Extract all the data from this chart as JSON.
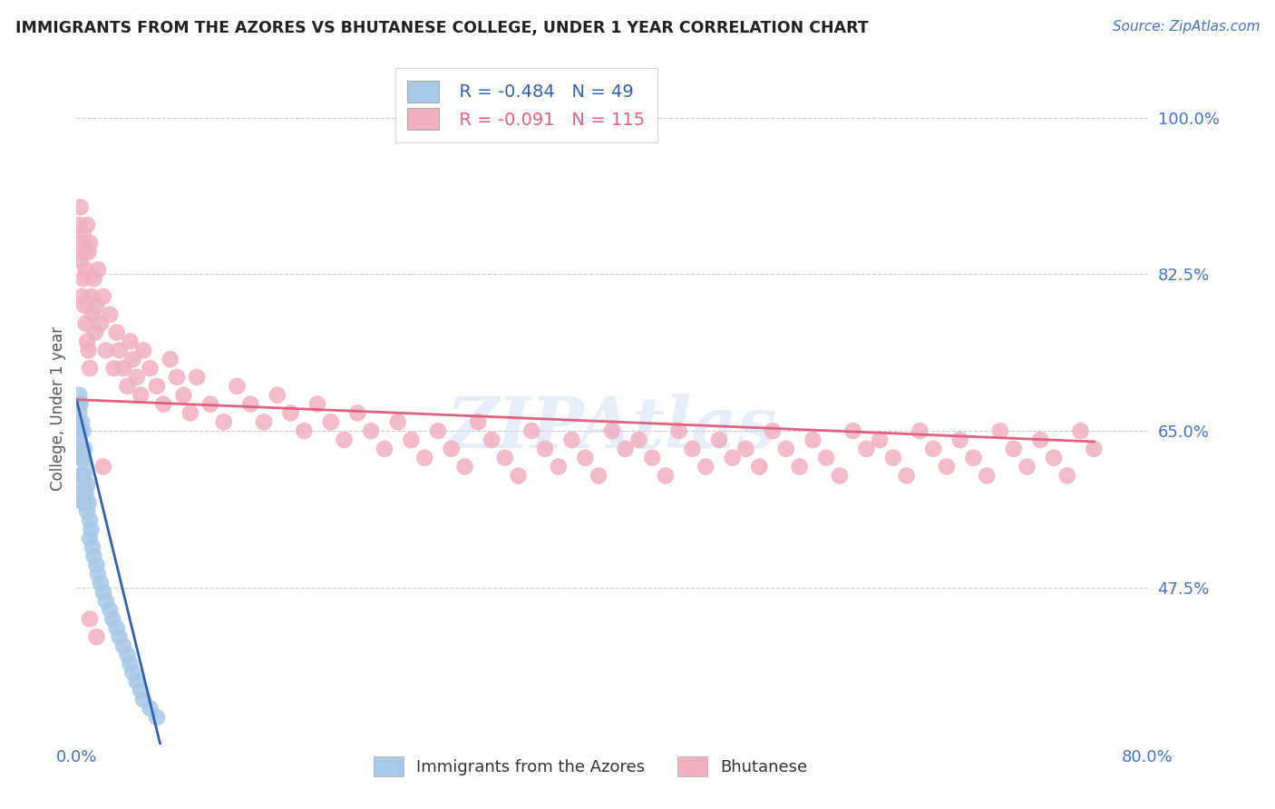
{
  "title": "IMMIGRANTS FROM THE AZORES VS BHUTANESE COLLEGE, UNDER 1 YEAR CORRELATION CHART",
  "source": "Source: ZipAtlas.com",
  "ylabel": "College, Under 1 year",
  "ytick_labels": [
    "100.0%",
    "82.5%",
    "65.0%",
    "47.5%"
  ],
  "ytick_values": [
    1.0,
    0.825,
    0.65,
    0.475
  ],
  "xmin": 0.0,
  "xmax": 0.8,
  "ymin": 0.3,
  "ymax": 1.05,
  "blue_R": -0.484,
  "blue_N": 49,
  "pink_R": -0.091,
  "pink_N": 115,
  "blue_color": "#a8c8e8",
  "pink_color": "#f0b0c0",
  "blue_line_color": "#3060b0",
  "pink_line_color": "#e06080",
  "watermark": "ZIPAtlas",
  "legend_label_blue": "Immigrants from the Azores",
  "legend_label_pink": "Bhutanese",
  "title_color": "#222222",
  "axis_label_color": "#4472c4",
  "background_color": "#ffffff",
  "blue_scatter_x": [
    0.001,
    0.001,
    0.002,
    0.002,
    0.002,
    0.002,
    0.003,
    0.003,
    0.003,
    0.003,
    0.004,
    0.004,
    0.004,
    0.004,
    0.005,
    0.005,
    0.005,
    0.005,
    0.006,
    0.006,
    0.006,
    0.007,
    0.007,
    0.008,
    0.008,
    0.009,
    0.01,
    0.01,
    0.011,
    0.012,
    0.013,
    0.015,
    0.016,
    0.018,
    0.02,
    0.022,
    0.025,
    0.027,
    0.03,
    0.032,
    0.035,
    0.038,
    0.04,
    0.042,
    0.045,
    0.048,
    0.05,
    0.055,
    0.06
  ],
  "blue_scatter_y": [
    0.68,
    0.66,
    0.69,
    0.64,
    0.67,
    0.63,
    0.68,
    0.65,
    0.62,
    0.6,
    0.66,
    0.63,
    0.6,
    0.58,
    0.65,
    0.62,
    0.59,
    0.57,
    0.63,
    0.6,
    0.57,
    0.61,
    0.58,
    0.59,
    0.56,
    0.57,
    0.55,
    0.53,
    0.54,
    0.52,
    0.51,
    0.5,
    0.49,
    0.48,
    0.47,
    0.46,
    0.45,
    0.44,
    0.43,
    0.42,
    0.41,
    0.4,
    0.39,
    0.38,
    0.37,
    0.36,
    0.35,
    0.34,
    0.33
  ],
  "pink_scatter_x": [
    0.002,
    0.003,
    0.003,
    0.004,
    0.004,
    0.005,
    0.005,
    0.006,
    0.006,
    0.007,
    0.007,
    0.008,
    0.008,
    0.009,
    0.009,
    0.01,
    0.01,
    0.011,
    0.012,
    0.013,
    0.014,
    0.015,
    0.016,
    0.018,
    0.02,
    0.022,
    0.025,
    0.028,
    0.03,
    0.032,
    0.035,
    0.038,
    0.04,
    0.042,
    0.045,
    0.048,
    0.05,
    0.055,
    0.06,
    0.065,
    0.07,
    0.075,
    0.08,
    0.085,
    0.09,
    0.1,
    0.11,
    0.12,
    0.13,
    0.14,
    0.15,
    0.16,
    0.17,
    0.18,
    0.19,
    0.2,
    0.21,
    0.22,
    0.23,
    0.24,
    0.25,
    0.26,
    0.27,
    0.28,
    0.29,
    0.3,
    0.31,
    0.32,
    0.33,
    0.34,
    0.35,
    0.36,
    0.37,
    0.38,
    0.39,
    0.4,
    0.41,
    0.42,
    0.43,
    0.44,
    0.45,
    0.46,
    0.47,
    0.48,
    0.49,
    0.5,
    0.51,
    0.52,
    0.53,
    0.54,
    0.55,
    0.56,
    0.57,
    0.58,
    0.59,
    0.6,
    0.61,
    0.62,
    0.63,
    0.64,
    0.65,
    0.66,
    0.67,
    0.68,
    0.69,
    0.7,
    0.71,
    0.72,
    0.73,
    0.74,
    0.75,
    0.76,
    0.01,
    0.015,
    0.02
  ],
  "pink_scatter_y": [
    0.88,
    0.9,
    0.84,
    0.86,
    0.8,
    0.87,
    0.82,
    0.85,
    0.79,
    0.83,
    0.77,
    0.88,
    0.75,
    0.85,
    0.74,
    0.86,
    0.72,
    0.8,
    0.78,
    0.82,
    0.76,
    0.79,
    0.83,
    0.77,
    0.8,
    0.74,
    0.78,
    0.72,
    0.76,
    0.74,
    0.72,
    0.7,
    0.75,
    0.73,
    0.71,
    0.69,
    0.74,
    0.72,
    0.7,
    0.68,
    0.73,
    0.71,
    0.69,
    0.67,
    0.71,
    0.68,
    0.66,
    0.7,
    0.68,
    0.66,
    0.69,
    0.67,
    0.65,
    0.68,
    0.66,
    0.64,
    0.67,
    0.65,
    0.63,
    0.66,
    0.64,
    0.62,
    0.65,
    0.63,
    0.61,
    0.66,
    0.64,
    0.62,
    0.6,
    0.65,
    0.63,
    0.61,
    0.64,
    0.62,
    0.6,
    0.65,
    0.63,
    0.64,
    0.62,
    0.6,
    0.65,
    0.63,
    0.61,
    0.64,
    0.62,
    0.63,
    0.61,
    0.65,
    0.63,
    0.61,
    0.64,
    0.62,
    0.6,
    0.65,
    0.63,
    0.64,
    0.62,
    0.6,
    0.65,
    0.63,
    0.61,
    0.64,
    0.62,
    0.6,
    0.65,
    0.63,
    0.61,
    0.64,
    0.62,
    0.6,
    0.65,
    0.63,
    0.44,
    0.42,
    0.61
  ],
  "blue_trend_x": [
    0.0,
    0.065
  ],
  "blue_trend_y_start": 0.685,
  "blue_trend_y_end": 0.285,
  "pink_trend_x": [
    0.0,
    0.76
  ],
  "pink_trend_y_start": 0.685,
  "pink_trend_y_end": 0.638
}
